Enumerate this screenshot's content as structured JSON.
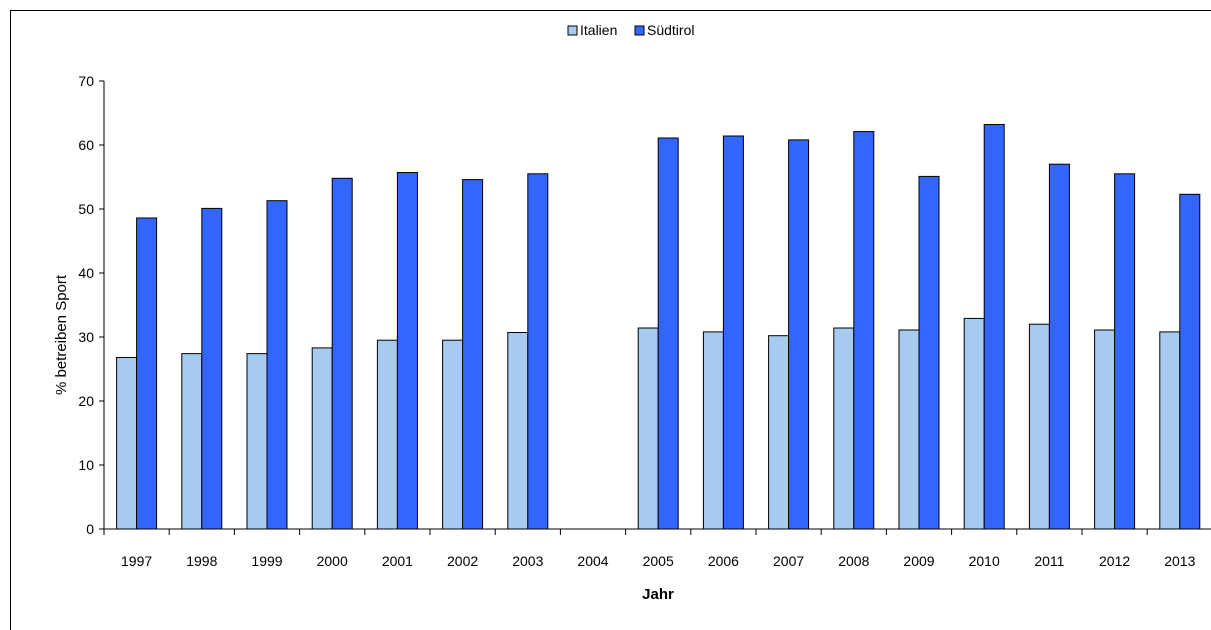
{
  "chart_data": {
    "type": "bar",
    "categories": [
      "1997",
      "1998",
      "1999",
      "2000",
      "2001",
      "2002",
      "2003",
      "2004",
      "2005",
      "2006",
      "2007",
      "2008",
      "2009",
      "2010",
      "2011",
      "2012",
      "2013"
    ],
    "series": [
      {
        "name": "Italien",
        "color": "#a6caf0",
        "values": [
          26.8,
          27.4,
          27.4,
          28.3,
          29.5,
          29.5,
          30.7,
          null,
          31.4,
          30.8,
          30.2,
          31.4,
          31.1,
          32.9,
          32.0,
          31.1,
          30.8
        ]
      },
      {
        "name": "Südtirol",
        "color": "#3366ff",
        "values": [
          48.6,
          50.1,
          51.3,
          54.8,
          55.7,
          54.6,
          55.5,
          null,
          61.1,
          61.4,
          60.8,
          62.1,
          55.1,
          63.2,
          57.0,
          55.5,
          52.3
        ]
      }
    ],
    "xlabel": "Jahr",
    "ylabel": "% betreiben Sport",
    "ylim": [
      0,
      70
    ],
    "yticks": [
      "0",
      "10",
      "20",
      "30",
      "40",
      "50",
      "60",
      "70"
    ],
    "grid": false,
    "legend_position": "top-center"
  }
}
